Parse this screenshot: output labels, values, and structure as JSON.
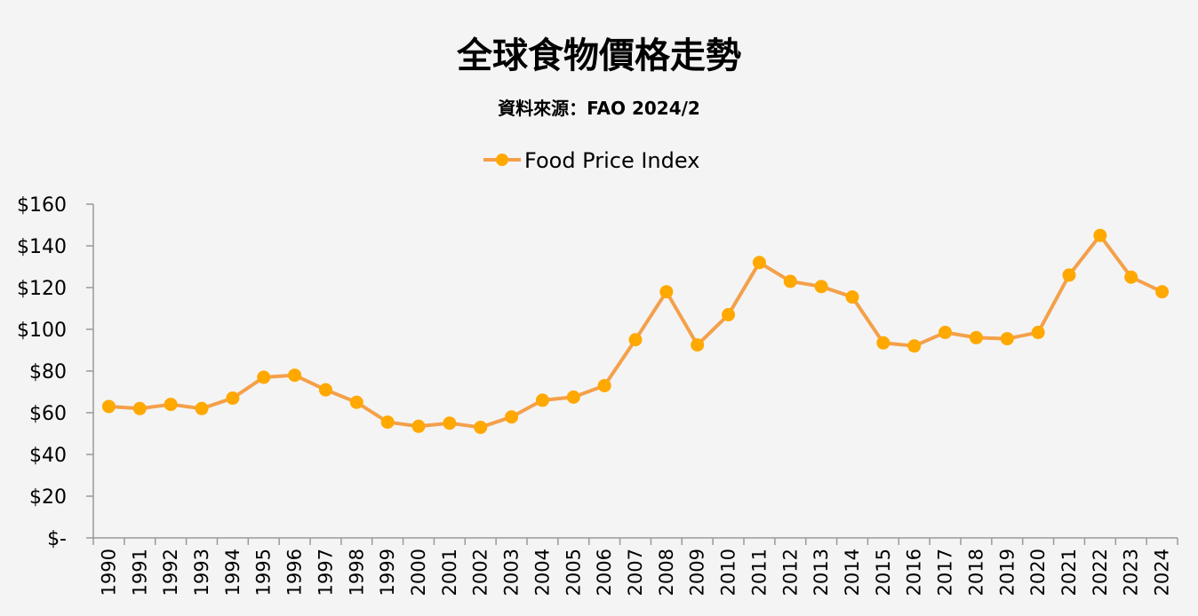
{
  "chart_data": {
    "type": "line",
    "title": "全球食物價格走勢",
    "subtitle": "資料來源：FAO  2024/2",
    "ylim": [
      0,
      160
    ],
    "ytick_values": [
      0,
      20,
      40,
      60,
      80,
      100,
      120,
      140,
      160
    ],
    "ytick_labels": [
      "$-",
      "$20",
      "$40",
      "$60",
      "$80",
      "$100",
      "$120",
      "$140",
      "$160"
    ],
    "grid": false,
    "legend_position": "top-center",
    "colors": {
      "line": "#f4a04a",
      "marker": "#ffa800",
      "background": "#f4f4f4",
      "axis": "#999999"
    },
    "categories": [
      "1990",
      "1991",
      "1992",
      "1993",
      "1994",
      "1995",
      "1996",
      "1997",
      "1998",
      "1999",
      "2000",
      "2001",
      "2002",
      "2003",
      "2004",
      "2005",
      "2006",
      "2007",
      "2008",
      "2009",
      "2010",
      "2011",
      "2012",
      "2013",
      "2014",
      "2015",
      "2016",
      "2017",
      "2018",
      "2019",
      "2020",
      "2021",
      "2022",
      "2023",
      "2024"
    ],
    "series": [
      {
        "name": "Food Price Index",
        "values": [
          63,
          62,
          64,
          62,
          67,
          77,
          78,
          71,
          65,
          55.5,
          53.5,
          55,
          53,
          58,
          66,
          67.5,
          73,
          95,
          118,
          92.5,
          107,
          132,
          123,
          120.5,
          115.5,
          93.5,
          92,
          98.5,
          96,
          95.5,
          98.5,
          126,
          145,
          125,
          118
        ]
      }
    ]
  }
}
